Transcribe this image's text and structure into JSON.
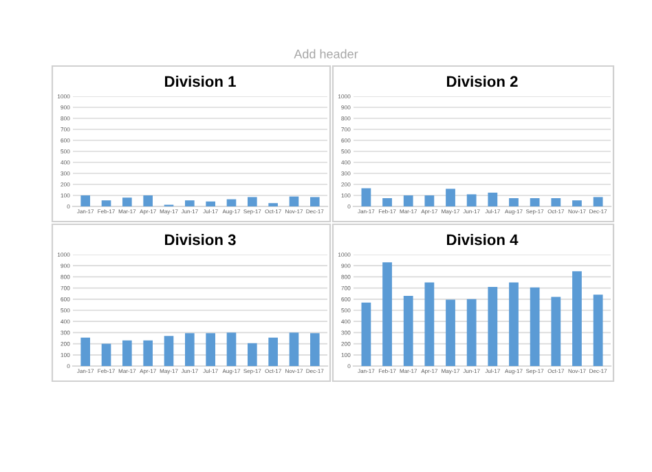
{
  "chart_data": [
    {
      "type": "bar",
      "title": "Division 1",
      "annotations": [
        "Add header"
      ],
      "categories": [
        "Jan-17",
        "Feb-17",
        "Mar-17",
        "Apr-17",
        "May-17",
        "Jun-17",
        "Jul-17",
        "Aug-17",
        "Sep-17",
        "Oct-17",
        "Nov-17",
        "Dec-17"
      ],
      "values": [
        100,
        55,
        80,
        100,
        15,
        55,
        45,
        65,
        85,
        30,
        90,
        85
      ],
      "color": "#5b9bd5",
      "ylim": [
        0,
        1000
      ],
      "yticks": [
        0,
        100,
        200,
        300,
        400,
        500,
        600,
        700,
        800,
        900,
        1000
      ],
      "grid": "y"
    },
    {
      "type": "bar",
      "title": "Division 2",
      "categories": [
        "Jan-17",
        "Feb-17",
        "Mar-17",
        "Apr-17",
        "May-17",
        "Jun-17",
        "Jul-17",
        "Aug-17",
        "Sep-17",
        "Oct-17",
        "Nov-17",
        "Dec-17"
      ],
      "values": [
        165,
        75,
        100,
        100,
        160,
        110,
        125,
        75,
        75,
        75,
        55,
        85
      ],
      "color": "#5b9bd5",
      "ylim": [
        0,
        1000
      ],
      "yticks": [
        0,
        100,
        200,
        300,
        400,
        500,
        600,
        700,
        800,
        900,
        1000
      ],
      "grid": "y"
    },
    {
      "type": "bar",
      "title": "Division 3",
      "categories": [
        "Jan-17",
        "Feb-17",
        "Mar-17",
        "Apr-17",
        "May-17",
        "Jun-17",
        "Jul-17",
        "Aug-17",
        "Sep-17",
        "Oct-17",
        "Nov-17",
        "Dec-17"
      ],
      "values": [
        255,
        200,
        230,
        230,
        270,
        295,
        295,
        300,
        205,
        255,
        300,
        295
      ],
      "color": "#5b9bd5",
      "ylim": [
        0,
        1000
      ],
      "yticks": [
        0,
        100,
        200,
        300,
        400,
        500,
        600,
        700,
        800,
        900,
        1000
      ],
      "grid": "y"
    },
    {
      "type": "bar",
      "title": "Division 4",
      "categories": [
        "Jan-17",
        "Feb-17",
        "Mar-17",
        "Apr-17",
        "May-17",
        "Jun-17",
        "Jul-17",
        "Aug-17",
        "Sep-17",
        "Oct-17",
        "Nov-17",
        "Dec-17"
      ],
      "values": [
        570,
        930,
        630,
        750,
        595,
        600,
        710,
        750,
        705,
        620,
        850,
        640
      ],
      "color": "#5b9bd5",
      "ylim": [
        0,
        1000
      ],
      "yticks": [
        0,
        100,
        200,
        300,
        400,
        500,
        600,
        700,
        800,
        900,
        1000
      ],
      "grid": "y"
    }
  ]
}
